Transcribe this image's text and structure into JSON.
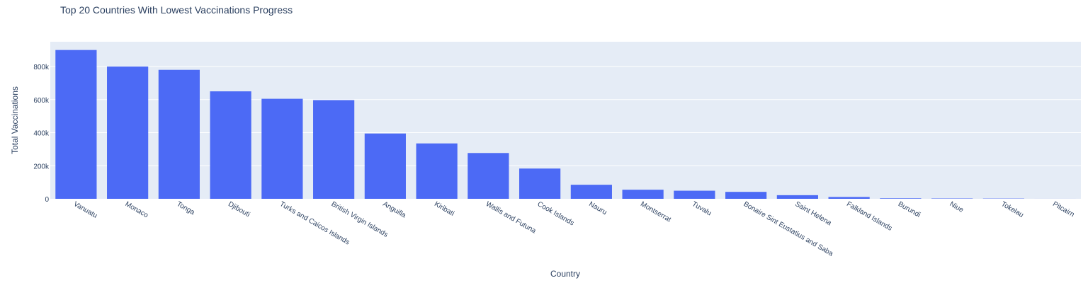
{
  "chart_data": {
    "type": "bar",
    "title": "Top 20 Countries With Lowest Vaccinations Progress",
    "xlabel": "Country",
    "ylabel": "Total Vaccinations",
    "ylim": [
      0,
      950000
    ],
    "yticks": [
      0,
      200000,
      400000,
      600000,
      800000
    ],
    "ytick_labels": [
      "0",
      "200k",
      "400k",
      "600k",
      "800k"
    ],
    "grid": true,
    "bar_color": "#4c6af5",
    "plot_bg": "#e5ecf6",
    "categories": [
      "Vanuatu",
      "Monaco",
      "Tonga",
      "Djibouti",
      "Turks and Caicos Islands",
      "British Virgin Islands",
      "Anguilla",
      "Kiribati",
      "Wallis and Futuna",
      "Cook Islands",
      "Nauru",
      "Montserrat",
      "Tuvalu",
      "Bonaire Sint Eustatius and Saba",
      "Saint Helena",
      "Falkland Islands",
      "Burundi",
      "Niue",
      "Tokelau",
      "Pitcairn"
    ],
    "values": [
      900000,
      800000,
      780000,
      650000,
      605000,
      597000,
      395000,
      335000,
      277000,
      183000,
      85000,
      55000,
      49000,
      42000,
      22000,
      11000,
      3000,
      2000,
      1500,
      100
    ]
  }
}
